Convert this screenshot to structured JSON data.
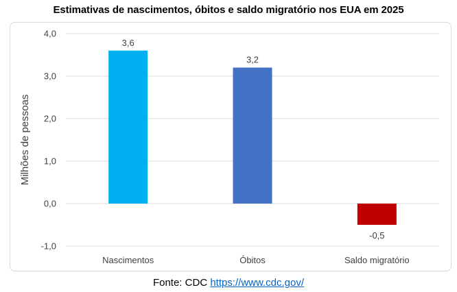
{
  "chart_data": {
    "type": "bar",
    "title": "Estimativas de nascimentos, óbitos e saldo migratório nos EUA em 2025",
    "xlabel": "",
    "ylabel": "Milhões de pessoas",
    "categories": [
      "Nascimentos",
      "Óbitos",
      "Saldo migratório"
    ],
    "values": [
      3.6,
      3.2,
      -0.5
    ],
    "data_labels": [
      "3,6",
      "3,2",
      "-0,5"
    ],
    "colors": [
      "#00b0f0",
      "#4472c4",
      "#c00000"
    ],
    "ylim": [
      -1.0,
      4.0
    ],
    "yticks": [
      -1.0,
      0.0,
      1.0,
      2.0,
      3.0,
      4.0
    ],
    "ytick_labels": [
      "-1,0",
      "0,0",
      "1,0",
      "2,0",
      "3,0",
      "4,0"
    ],
    "grid": true,
    "legend": "none"
  },
  "source": {
    "prefix": "Fonte: CDC ",
    "link_text": "https://www.cdc.gov/"
  },
  "colors": {
    "gridline": "#d9d9d9",
    "axis_text": "#404040",
    "link": "#0563c1"
  }
}
